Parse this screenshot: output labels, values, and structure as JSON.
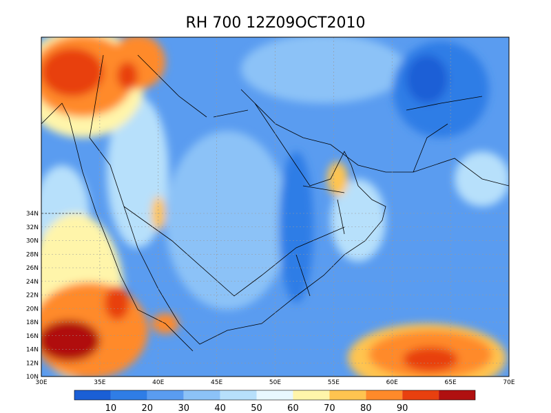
{
  "title": "RH 700 12Z09OCT2010",
  "map": {
    "lon_labels": [
      "30E",
      "35E",
      "40E",
      "45E",
      "50E",
      "55E",
      "60E",
      "65E",
      "70E"
    ],
    "lat_labels": [
      "10N",
      "12N",
      "14N",
      "16N",
      "18N",
      "20N",
      "22N",
      "24N",
      "26N",
      "28N",
      "30N",
      "32N",
      "34N"
    ]
  },
  "colorbar": {
    "colors": [
      "#1a5fd6",
      "#2f7de6",
      "#5a9cf0",
      "#8cc2f7",
      "#b7e0fb",
      "#e8f8ff",
      "#fff5aa",
      "#ffc450",
      "#ff8a2a",
      "#e8400f",
      "#b01010"
    ],
    "labels": [
      10,
      20,
      30,
      40,
      50,
      60,
      70,
      80,
      90
    ]
  }
}
